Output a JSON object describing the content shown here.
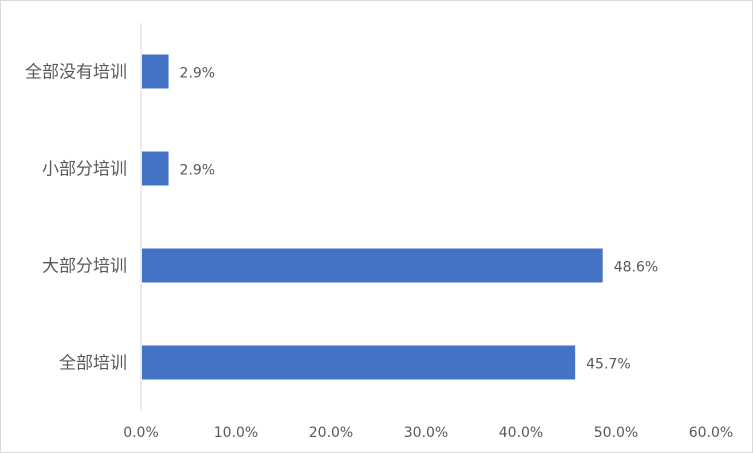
{
  "chart_data": {
    "type": "bar",
    "orientation": "horizontal",
    "categories": [
      "全部没有培训",
      "小部分培训",
      "大部分培训",
      "全部培训"
    ],
    "values": [
      2.9,
      2.9,
      48.6,
      45.7
    ],
    "value_labels": [
      "2.9%",
      "2.9%",
      "48.6%",
      "45.7%"
    ],
    "xlim": [
      0,
      60
    ],
    "x_ticks": [
      "0.0%",
      "10.0%",
      "20.0%",
      "30.0%",
      "40.0%",
      "50.0%",
      "60.0%"
    ],
    "grid": false,
    "bar_color": "#4472C4"
  }
}
